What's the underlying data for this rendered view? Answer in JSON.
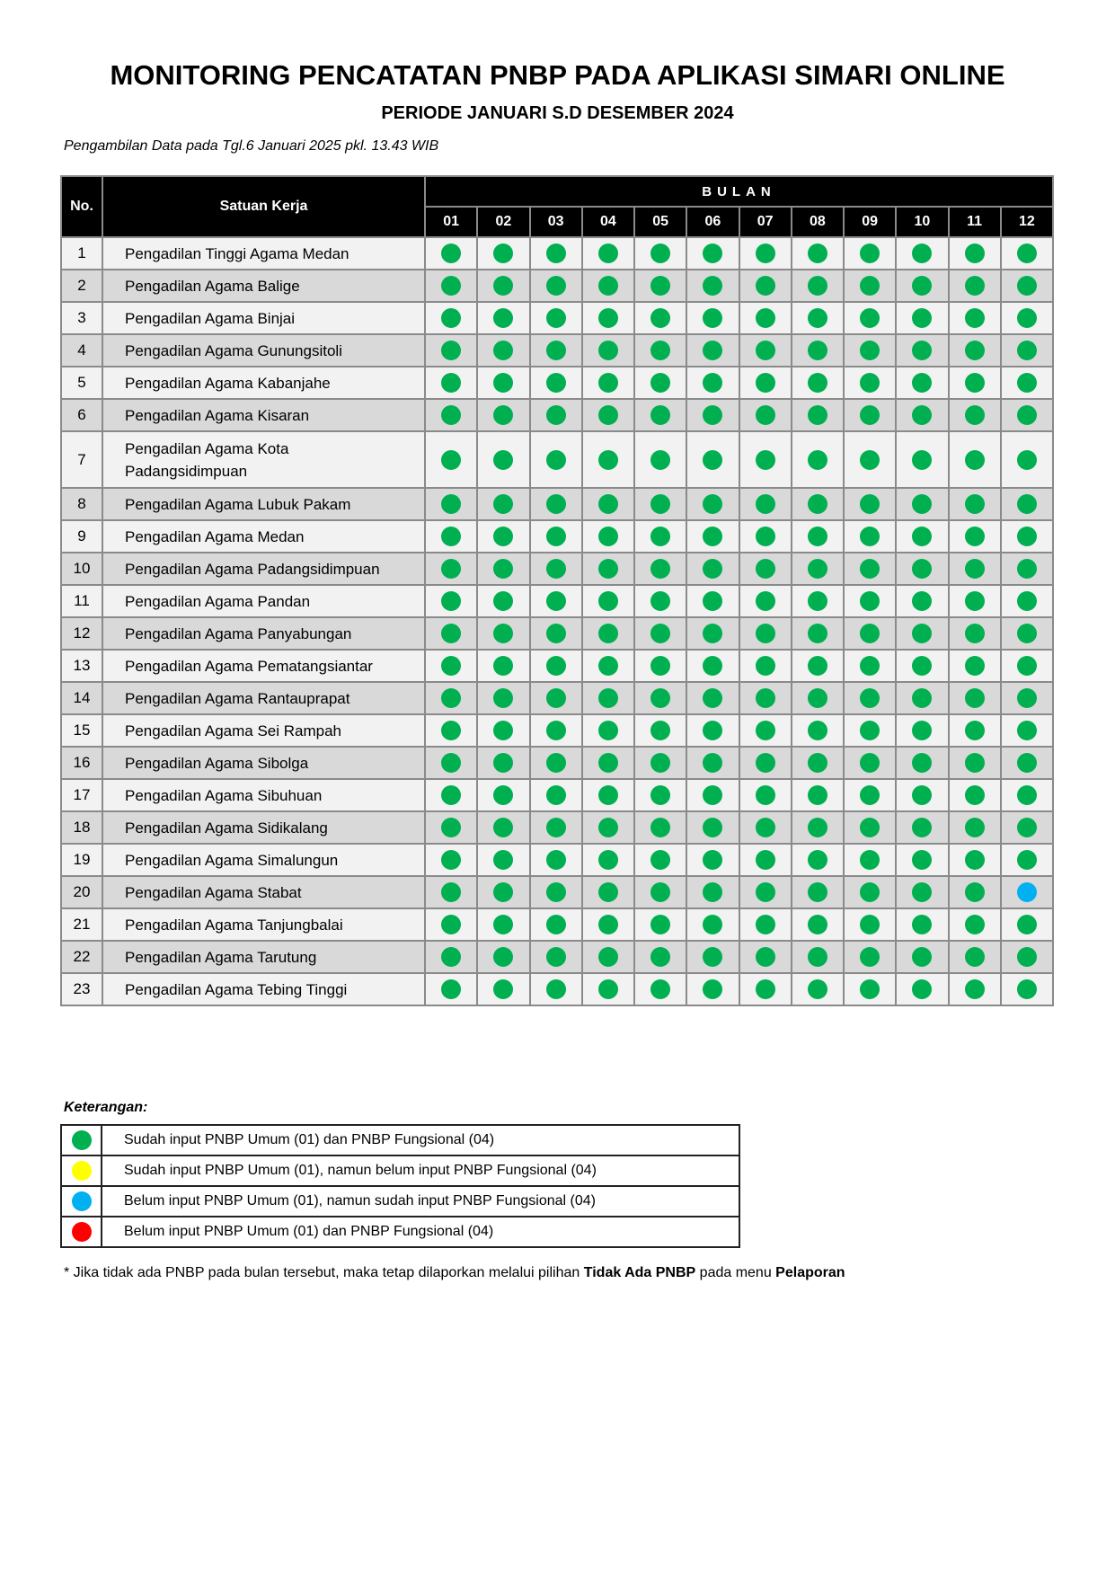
{
  "title": "MONITORING PENCATATAN PNBP PADA APLIKASI SIMARI ONLINE",
  "subtitle": "PERIODE JANUARI S.D DESEMBER 2024",
  "note": "Pengambilan Data pada Tgl.6 Januari 2025 pkl. 13.43 WIB",
  "table": {
    "headers": {
      "no": "No.",
      "unit": "Satuan Kerja",
      "bulan": "BULAN"
    },
    "months": [
      "01",
      "02",
      "03",
      "04",
      "05",
      "06",
      "07",
      "08",
      "09",
      "10",
      "11",
      "12"
    ],
    "status_colors": {
      "green": "#00b050",
      "yellow": "#ffff00",
      "blue": "#00b0f0",
      "red": "#ff0000"
    },
    "rows": [
      {
        "no": "1",
        "name": "Pengadilan Tinggi Agama Medan",
        "status": [
          "green",
          "green",
          "green",
          "green",
          "green",
          "green",
          "green",
          "green",
          "green",
          "green",
          "green",
          "green"
        ]
      },
      {
        "no": "2",
        "name": "Pengadilan Agama Balige",
        "status": [
          "green",
          "green",
          "green",
          "green",
          "green",
          "green",
          "green",
          "green",
          "green",
          "green",
          "green",
          "green"
        ]
      },
      {
        "no": "3",
        "name": "Pengadilan Agama Binjai",
        "status": [
          "green",
          "green",
          "green",
          "green",
          "green",
          "green",
          "green",
          "green",
          "green",
          "green",
          "green",
          "green"
        ]
      },
      {
        "no": "4",
        "name": "Pengadilan Agama Gunungsitoli",
        "status": [
          "green",
          "green",
          "green",
          "green",
          "green",
          "green",
          "green",
          "green",
          "green",
          "green",
          "green",
          "green"
        ]
      },
      {
        "no": "5",
        "name": "Pengadilan Agama Kabanjahe",
        "status": [
          "green",
          "green",
          "green",
          "green",
          "green",
          "green",
          "green",
          "green",
          "green",
          "green",
          "green",
          "green"
        ]
      },
      {
        "no": "6",
        "name": "Pengadilan Agama Kisaran",
        "status": [
          "green",
          "green",
          "green",
          "green",
          "green",
          "green",
          "green",
          "green",
          "green",
          "green",
          "green",
          "green"
        ]
      },
      {
        "no": "7",
        "name": "Pengadilan Agama Kota Padangsidimpuan",
        "status": [
          "green",
          "green",
          "green",
          "green",
          "green",
          "green",
          "green",
          "green",
          "green",
          "green",
          "green",
          "green"
        ]
      },
      {
        "no": "8",
        "name": "Pengadilan Agama Lubuk Pakam",
        "status": [
          "green",
          "green",
          "green",
          "green",
          "green",
          "green",
          "green",
          "green",
          "green",
          "green",
          "green",
          "green"
        ]
      },
      {
        "no": "9",
        "name": "Pengadilan Agama Medan",
        "status": [
          "green",
          "green",
          "green",
          "green",
          "green",
          "green",
          "green",
          "green",
          "green",
          "green",
          "green",
          "green"
        ]
      },
      {
        "no": "10",
        "name": "Pengadilan Agama Padangsidimpuan",
        "status": [
          "green",
          "green",
          "green",
          "green",
          "green",
          "green",
          "green",
          "green",
          "green",
          "green",
          "green",
          "green"
        ]
      },
      {
        "no": "11",
        "name": "Pengadilan Agama Pandan",
        "status": [
          "green",
          "green",
          "green",
          "green",
          "green",
          "green",
          "green",
          "green",
          "green",
          "green",
          "green",
          "green"
        ]
      },
      {
        "no": "12",
        "name": "Pengadilan Agama Panyabungan",
        "status": [
          "green",
          "green",
          "green",
          "green",
          "green",
          "green",
          "green",
          "green",
          "green",
          "green",
          "green",
          "green"
        ]
      },
      {
        "no": "13",
        "name": "Pengadilan Agama Pematangsiantar",
        "status": [
          "green",
          "green",
          "green",
          "green",
          "green",
          "green",
          "green",
          "green",
          "green",
          "green",
          "green",
          "green"
        ]
      },
      {
        "no": "14",
        "name": "Pengadilan Agama Rantauprapat",
        "status": [
          "green",
          "green",
          "green",
          "green",
          "green",
          "green",
          "green",
          "green",
          "green",
          "green",
          "green",
          "green"
        ]
      },
      {
        "no": "15",
        "name": "Pengadilan Agama Sei Rampah",
        "status": [
          "green",
          "green",
          "green",
          "green",
          "green",
          "green",
          "green",
          "green",
          "green",
          "green",
          "green",
          "green"
        ]
      },
      {
        "no": "16",
        "name": "Pengadilan Agama Sibolga",
        "status": [
          "green",
          "green",
          "green",
          "green",
          "green",
          "green",
          "green",
          "green",
          "green",
          "green",
          "green",
          "green"
        ]
      },
      {
        "no": "17",
        "name": "Pengadilan Agama Sibuhuan",
        "status": [
          "green",
          "green",
          "green",
          "green",
          "green",
          "green",
          "green",
          "green",
          "green",
          "green",
          "green",
          "green"
        ]
      },
      {
        "no": "18",
        "name": "Pengadilan Agama Sidikalang",
        "status": [
          "green",
          "green",
          "green",
          "green",
          "green",
          "green",
          "green",
          "green",
          "green",
          "green",
          "green",
          "green"
        ]
      },
      {
        "no": "19",
        "name": "Pengadilan Agama Simalungun",
        "status": [
          "green",
          "green",
          "green",
          "green",
          "green",
          "green",
          "green",
          "green",
          "green",
          "green",
          "green",
          "green"
        ]
      },
      {
        "no": "20",
        "name": "Pengadilan Agama Stabat",
        "status": [
          "green",
          "green",
          "green",
          "green",
          "green",
          "green",
          "green",
          "green",
          "green",
          "green",
          "green",
          "blue"
        ]
      },
      {
        "no": "21",
        "name": "Pengadilan Agama Tanjungbalai",
        "status": [
          "green",
          "green",
          "green",
          "green",
          "green",
          "green",
          "green",
          "green",
          "green",
          "green",
          "green",
          "green"
        ]
      },
      {
        "no": "22",
        "name": "Pengadilan Agama Tarutung",
        "status": [
          "green",
          "green",
          "green",
          "green",
          "green",
          "green",
          "green",
          "green",
          "green",
          "green",
          "green",
          "green"
        ]
      },
      {
        "no": "23",
        "name": "Pengadilan Agama Tebing Tinggi",
        "status": [
          "green",
          "green",
          "green",
          "green",
          "green",
          "green",
          "green",
          "green",
          "green",
          "green",
          "green",
          "green"
        ]
      }
    ]
  },
  "legend": {
    "title": "Keterangan:",
    "items": [
      {
        "color": "green",
        "label": "Sudah input PNBP Umum (01) dan PNBP Fungsional (04)"
      },
      {
        "color": "yellow",
        "label": "Sudah input PNBP Umum (01), namun belum input PNBP Fungsional (04)"
      },
      {
        "color": "blue",
        "label": "Belum input PNBP Umum (01), namun sudah input PNBP Fungsional (04)"
      },
      {
        "color": "red",
        "label": "Belum input PNBP Umum (01) dan PNBP Fungsional (04)"
      }
    ]
  },
  "footnote": {
    "prefix": "* Jika tidak ada PNBP pada bulan tersebut, maka tetap dilaporkan melalui pilihan ",
    "bold1": "Tidak Ada PNBP",
    "middle": " pada menu ",
    "bold2": "Pelaporan"
  }
}
